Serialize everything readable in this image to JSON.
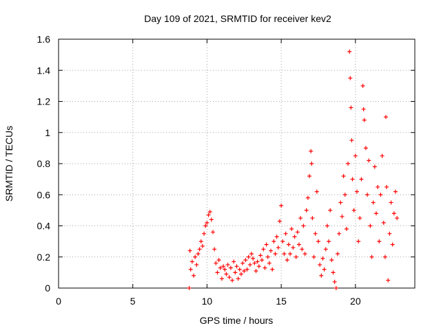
{
  "chart_data": {
    "type": "scatter",
    "title": "Day 109 of 2021, SRMTID for receiver kev2",
    "xlabel": "GPS time / hours",
    "ylabel": "SRMTID / TECUs",
    "xlim": [
      0,
      24
    ],
    "ylim": [
      0,
      1.6
    ],
    "x_ticks": [
      0,
      5,
      10,
      15,
      20
    ],
    "x_tick_labels": [
      "0",
      "5",
      "10",
      "15",
      "20"
    ],
    "y_ticks": [
      0,
      0.2,
      0.4,
      0.6,
      0.8,
      1.0,
      1.2,
      1.4,
      1.6
    ],
    "y_tick_labels": [
      "0",
      "0.2",
      "0.4",
      "0.6",
      "0.8",
      "1",
      "1.2",
      "1.4",
      "1.6"
    ],
    "grid": true,
    "marker": "+",
    "color": "#ff0000",
    "series": [
      {
        "name": "kev2",
        "points": [
          [
            8.8,
            0.0
          ],
          [
            8.85,
            0.24
          ],
          [
            8.9,
            0.12
          ],
          [
            9.0,
            0.17
          ],
          [
            9.1,
            0.08
          ],
          [
            9.2,
            0.2
          ],
          [
            9.3,
            0.15
          ],
          [
            9.4,
            0.22
          ],
          [
            9.5,
            0.25
          ],
          [
            9.6,
            0.3
          ],
          [
            9.7,
            0.27
          ],
          [
            9.8,
            0.35
          ],
          [
            9.9,
            0.4
          ],
          [
            10.0,
            0.42
          ],
          [
            10.1,
            0.47
          ],
          [
            10.2,
            0.49
          ],
          [
            10.3,
            0.44
          ],
          [
            10.4,
            0.36
          ],
          [
            10.5,
            0.25
          ],
          [
            10.6,
            0.16
          ],
          [
            10.7,
            0.1
          ],
          [
            10.8,
            0.18
          ],
          [
            10.9,
            0.13
          ],
          [
            11.0,
            0.06
          ],
          [
            11.1,
            0.14
          ],
          [
            11.2,
            0.12
          ],
          [
            11.3,
            0.09
          ],
          [
            11.4,
            0.15
          ],
          [
            11.5,
            0.07
          ],
          [
            11.6,
            0.13
          ],
          [
            11.7,
            0.05
          ],
          [
            11.8,
            0.17
          ],
          [
            11.9,
            0.1
          ],
          [
            12.0,
            0.14
          ],
          [
            12.1,
            0.06
          ],
          [
            12.2,
            0.12
          ],
          [
            12.3,
            0.09
          ],
          [
            12.4,
            0.16
          ],
          [
            12.5,
            0.11
          ],
          [
            12.6,
            0.18
          ],
          [
            12.7,
            0.12
          ],
          [
            12.8,
            0.2
          ],
          [
            12.9,
            0.15
          ],
          [
            13.0,
            0.22
          ],
          [
            13.1,
            0.19
          ],
          [
            13.2,
            0.16
          ],
          [
            13.3,
            0.11
          ],
          [
            13.4,
            0.17
          ],
          [
            13.5,
            0.14
          ],
          [
            13.6,
            0.21
          ],
          [
            13.7,
            0.18
          ],
          [
            13.8,
            0.25
          ],
          [
            13.9,
            0.13
          ],
          [
            14.0,
            0.28
          ],
          [
            14.1,
            0.2
          ],
          [
            14.2,
            0.16
          ],
          [
            14.3,
            0.24
          ],
          [
            14.4,
            0.12
          ],
          [
            14.5,
            0.3
          ],
          [
            14.6,
            0.22
          ],
          [
            14.7,
            0.33
          ],
          [
            14.8,
            0.26
          ],
          [
            14.9,
            0.43
          ],
          [
            15.0,
            0.53
          ],
          [
            15.1,
            0.3
          ],
          [
            15.2,
            0.22
          ],
          [
            15.3,
            0.35
          ],
          [
            15.4,
            0.18
          ],
          [
            15.5,
            0.28
          ],
          [
            15.6,
            0.22
          ],
          [
            15.7,
            0.38
          ],
          [
            15.8,
            0.26
          ],
          [
            15.9,
            0.33
          ],
          [
            16.0,
            0.2
          ],
          [
            16.1,
            0.36
          ],
          [
            16.2,
            0.28
          ],
          [
            16.3,
            0.45
          ],
          [
            16.4,
            0.25
          ],
          [
            16.5,
            0.4
          ],
          [
            16.6,
            0.22
          ],
          [
            16.7,
            0.5
          ],
          [
            16.8,
            0.58
          ],
          [
            16.9,
            0.72
          ],
          [
            17.0,
            0.88
          ],
          [
            17.05,
            0.8
          ],
          [
            17.1,
            0.45
          ],
          [
            17.2,
            0.2
          ],
          [
            17.3,
            0.35
          ],
          [
            17.4,
            0.62
          ],
          [
            17.5,
            0.3
          ],
          [
            17.6,
            0.15
          ],
          [
            17.7,
            0.08
          ],
          [
            17.8,
            0.19
          ],
          [
            17.9,
            0.12
          ],
          [
            18.0,
            0.25
          ],
          [
            18.1,
            0.4
          ],
          [
            18.2,
            0.3
          ],
          [
            18.3,
            0.5
          ],
          [
            18.4,
            0.18
          ],
          [
            18.5,
            0.1
          ],
          [
            18.6,
            0.04
          ],
          [
            18.7,
            0.0
          ],
          [
            18.8,
            0.22
          ],
          [
            18.9,
            0.35
          ],
          [
            19.0,
            0.55
          ],
          [
            19.1,
            0.46
          ],
          [
            19.2,
            0.72
          ],
          [
            19.3,
            0.6
          ],
          [
            19.4,
            0.38
          ],
          [
            19.5,
            0.8
          ],
          [
            19.6,
            1.52
          ],
          [
            19.65,
            1.35
          ],
          [
            19.7,
            1.16
          ],
          [
            19.75,
            0.95
          ],
          [
            19.8,
            0.7
          ],
          [
            19.9,
            0.5
          ],
          [
            20.0,
            0.85
          ],
          [
            20.1,
            0.62
          ],
          [
            20.2,
            0.3
          ],
          [
            20.3,
            0.45
          ],
          [
            20.4,
            0.7
          ],
          [
            20.5,
            1.3
          ],
          [
            20.55,
            1.15
          ],
          [
            20.6,
            1.08
          ],
          [
            20.7,
            0.9
          ],
          [
            20.8,
            0.6
          ],
          [
            20.9,
            0.82
          ],
          [
            21.0,
            0.4
          ],
          [
            21.1,
            0.2
          ],
          [
            21.2,
            0.55
          ],
          [
            21.3,
            0.78
          ],
          [
            21.4,
            0.48
          ],
          [
            21.5,
            0.65
          ],
          [
            21.6,
            0.3
          ],
          [
            21.7,
            0.6
          ],
          [
            21.8,
            0.85
          ],
          [
            21.9,
            0.42
          ],
          [
            22.0,
            0.2
          ],
          [
            22.05,
            1.1
          ],
          [
            22.1,
            0.65
          ],
          [
            22.2,
            0.05
          ],
          [
            22.3,
            0.35
          ],
          [
            22.4,
            0.55
          ],
          [
            22.5,
            0.28
          ],
          [
            22.6,
            0.48
          ],
          [
            22.7,
            0.62
          ],
          [
            22.8,
            0.45
          ]
        ]
      }
    ]
  }
}
